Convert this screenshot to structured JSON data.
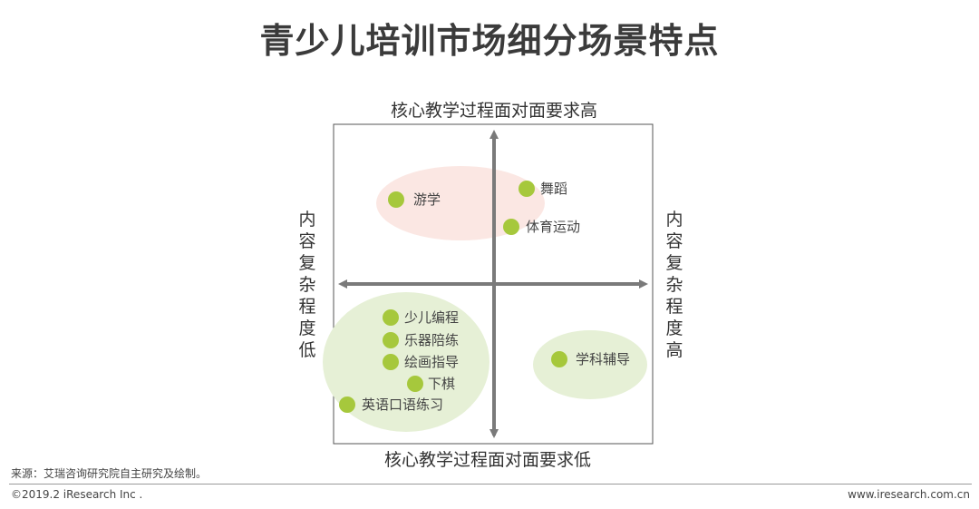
{
  "title": "青少儿培训市场细分场景特点",
  "axes": {
    "top": "核心教学过程面对面要求高",
    "bottom": "核心教学过程面对面要求低",
    "left": [
      "内",
      "容",
      "复",
      "杂",
      "程",
      "度",
      "低"
    ],
    "right": [
      "内",
      "容",
      "复",
      "杂",
      "程",
      "度",
      "高"
    ]
  },
  "points": [
    {
      "key": "youxue",
      "label": "游学"
    },
    {
      "key": "wudao",
      "label": "舞蹈"
    },
    {
      "key": "tiyu",
      "label": "体育运动"
    },
    {
      "key": "biancheng",
      "label": "少儿编程"
    },
    {
      "key": "yueqi",
      "label": "乐器陪练"
    },
    {
      "key": "huihua",
      "label": "绘画指导"
    },
    {
      "key": "xiaqi",
      "label": "下棋"
    },
    {
      "key": "yingyu",
      "label": "英语口语练习"
    },
    {
      "key": "xueke",
      "label": "学科辅导"
    }
  ],
  "colors": {
    "dot": "#a6c83c",
    "cluster_pink": "#fbe7e3",
    "cluster_green": "#e6f0d6",
    "axis": "#7a7a7a",
    "frame": "#555555"
  },
  "source": "来源：艾瑞咨询研究院自主研究及绘制。",
  "copyright": "©2019.2 iResearch Inc .",
  "site": "www.iresearch.com.cn"
}
